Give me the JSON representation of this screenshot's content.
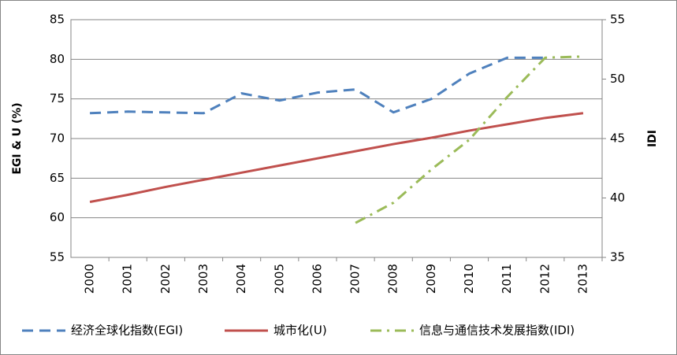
{
  "chart_data": {
    "type": "line",
    "categories": [
      "2000",
      "2001",
      "2002",
      "2003",
      "2004",
      "2005",
      "2006",
      "2007",
      "2008",
      "2009",
      "2010",
      "2011",
      "2012",
      "2013"
    ],
    "y_label": "EGI & U (%)",
    "y2_label": "IDI",
    "ylim": [
      55,
      85
    ],
    "yticks": [
      55,
      60,
      65,
      70,
      75,
      80,
      85
    ],
    "y2lim": [
      35,
      55
    ],
    "y2ticks": [
      35,
      40,
      45,
      50,
      55
    ],
    "grid": true,
    "legend": "bottom",
    "series": [
      {
        "name": "经济全球化指数(EGI)",
        "color": "#4f81bd",
        "dash": "dashed",
        "values": [
          73.2,
          73.4,
          73.3,
          73.2,
          75.7,
          74.8,
          75.8,
          76.2,
          73.3,
          75.0,
          78.2,
          80.2,
          80.2,
          null
        ]
      },
      {
        "name": "城市化(U)",
        "color": "#c0504d",
        "dash": "solid",
        "values": [
          62.0,
          62.9,
          63.9,
          64.8,
          65.7,
          66.6,
          67.5,
          68.4,
          69.3,
          70.1,
          71.0,
          71.8,
          72.6,
          73.2
        ]
      },
      {
        "name": "信息与通信技术发展指数(IDI)",
        "color": "#9bbb59",
        "dash": "dashdot",
        "axis": "y2",
        "values": [
          null,
          null,
          null,
          null,
          null,
          null,
          null,
          37.9,
          39.6,
          42.4,
          44.9,
          48.5,
          51.8,
          51.9
        ]
      }
    ]
  }
}
